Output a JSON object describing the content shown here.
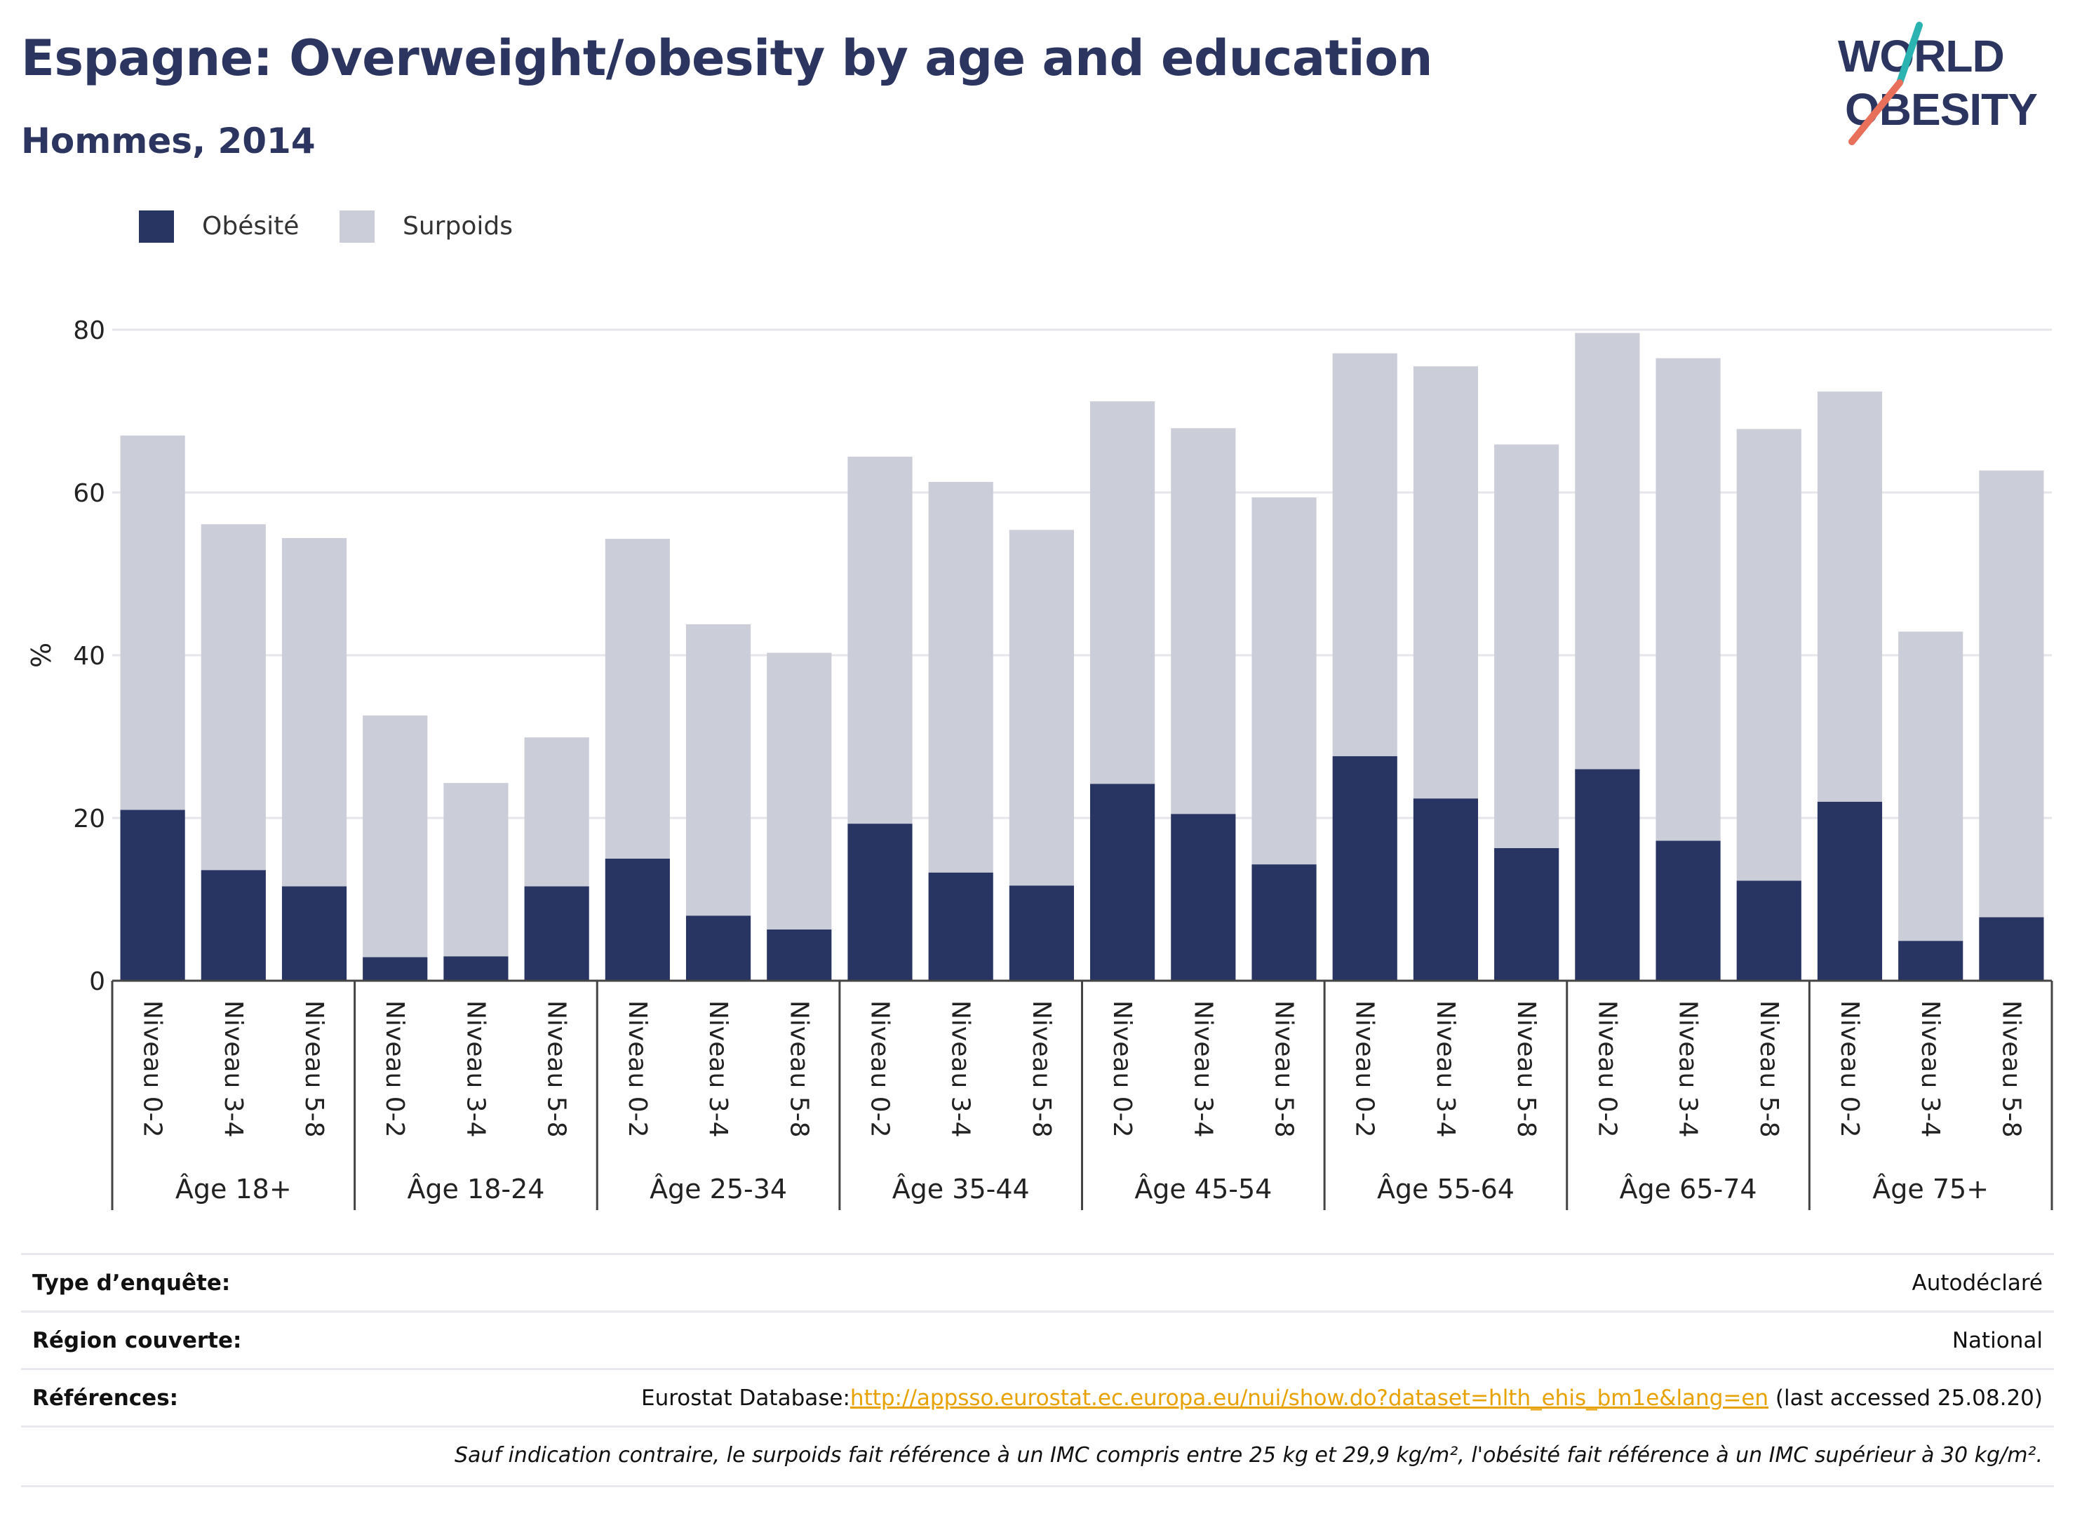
{
  "title": "Espagne: Overweight/obesity by age and education",
  "subtitle": "Hommes, 2014",
  "logo": {
    "line1": "WORLD",
    "line2": "OBESITY"
  },
  "colors": {
    "obesite": "#283462",
    "surpoids": "#cbcdd9",
    "title": "#2b3560",
    "link": "#e8a200"
  },
  "legend": [
    {
      "label": "Obésité",
      "color": "#283462"
    },
    {
      "label": "Surpoids",
      "color": "#cbcdd9"
    }
  ],
  "chart_data": {
    "type": "bar",
    "stacked": true,
    "ylabel": "%",
    "ylim": [
      0,
      80
    ],
    "yticks": [
      0,
      20,
      40,
      60,
      80
    ],
    "grid": true,
    "legend_position": "top-left",
    "groups": [
      "Âge 18+",
      "Âge 18-24",
      "Âge 25-34",
      "Âge 35-44",
      "Âge 45-54",
      "Âge 55-64",
      "Âge 65-74",
      "Âge 75+"
    ],
    "levels": [
      "Niveau 0-2",
      "Niveau 3-4",
      "Niveau 5-8"
    ],
    "series": [
      {
        "name": "Obésité",
        "values": [
          21.0,
          13.6,
          11.6,
          2.9,
          3.0,
          11.6,
          15.0,
          8.0,
          6.3,
          19.3,
          13.3,
          11.7,
          24.2,
          20.5,
          14.3,
          27.6,
          22.4,
          16.3,
          26.0,
          17.2,
          12.3,
          22.0,
          4.9,
          7.8
        ]
      },
      {
        "name": "Surpoids",
        "values": [
          46.0,
          42.5,
          42.8,
          29.7,
          21.3,
          18.3,
          39.3,
          35.8,
          34.0,
          45.1,
          48.0,
          43.7,
          47.0,
          47.4,
          45.1,
          49.5,
          53.1,
          49.6,
          53.6,
          59.3,
          55.5,
          50.4,
          38.0,
          54.9
        ]
      }
    ]
  },
  "info": {
    "survey_label": "Type d’enquête:",
    "survey_value": "Autodéclaré",
    "region_label": "Région couverte:",
    "region_value": "National",
    "refs_label": "Références:",
    "refs_prefix": "Eurostat Database:",
    "refs_link": "http://appsso.eurostat.ec.europa.eu/nui/show.do?dataset=hlth_ehis_bm1e&lang=en",
    "refs_suffix": " (last accessed 25.08.20)",
    "note": "Sauf indication contraire, le surpoids fait référence à un IMC compris entre 25 kg et 29,9 kg/m², l'obésité fait référence à un IMC supérieur à 30 kg/m²."
  }
}
